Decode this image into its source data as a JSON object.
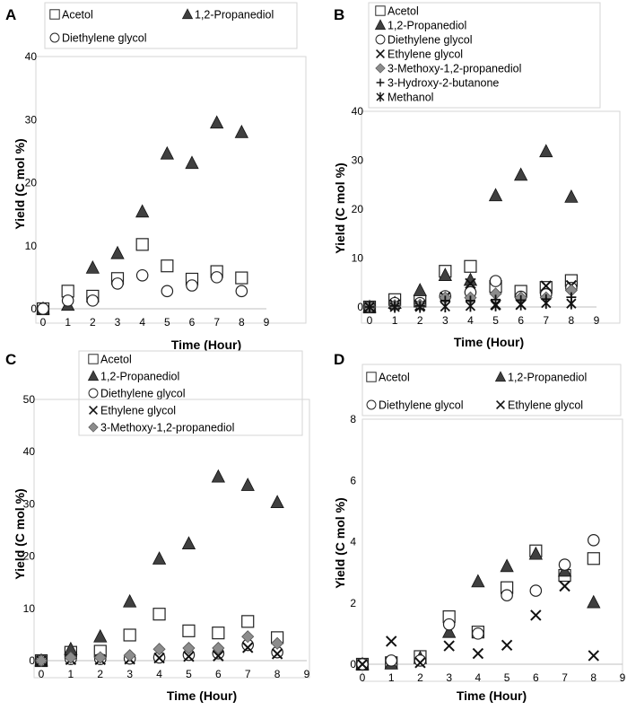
{
  "chart_data": [
    {
      "panel": "A",
      "type": "scatter",
      "xlabel": "Time (Hour)",
      "ylabel": "Yield (C mol %)",
      "xlim": [
        0,
        9
      ],
      "ylim": [
        0,
        40
      ],
      "xticks": [
        "0",
        "1",
        "2",
        "3",
        "4",
        "5",
        "6",
        "7",
        "8",
        "9"
      ],
      "yticks": [
        "0",
        "10",
        "20",
        "30",
        "40"
      ],
      "grid": false,
      "legend_position": "top",
      "legend": [
        "Acetol",
        "1,2-Propanediol",
        "Diethylene glycol"
      ],
      "series": [
        {
          "name": "Acetol",
          "marker": "square",
          "x": [
            0,
            1,
            2,
            3,
            4,
            5,
            6,
            7,
            8
          ],
          "values": [
            0,
            2.8,
            2.0,
            4.8,
            10.2,
            6.8,
            4.7,
            5.9,
            4.9
          ]
        },
        {
          "name": "1,2-Propanediol",
          "marker": "triangle",
          "x": [
            0,
            1,
            2,
            3,
            4,
            5,
            6,
            7,
            8
          ],
          "values": [
            0,
            0.6,
            6.5,
            8.8,
            15.4,
            24.6,
            23.1,
            29.5,
            28.0
          ]
        },
        {
          "name": "Diethylene glycol",
          "marker": "circle",
          "x": [
            0,
            1,
            2,
            3,
            4,
            5,
            6,
            7,
            8
          ],
          "values": [
            0,
            1.3,
            1.3,
            4.0,
            5.3,
            2.8,
            3.7,
            5.0,
            2.8
          ]
        }
      ]
    },
    {
      "panel": "B",
      "type": "scatter",
      "xlabel": "Time (Hour)",
      "ylabel": "Yield (C mol %)",
      "xlim": [
        0,
        9
      ],
      "ylim": [
        0,
        40
      ],
      "xticks": [
        "0",
        "1",
        "2",
        "3",
        "4",
        "5",
        "6",
        "7",
        "8",
        "9"
      ],
      "yticks": [
        "0",
        "10",
        "20",
        "30",
        "40"
      ],
      "grid": false,
      "legend_position": "top",
      "legend": [
        "Acetol",
        "1,2-Propanediol",
        "Diethylene glycol",
        "Ethylene glycol",
        "3-Methoxy-1,2-propanediol",
        "3-Hydroxy-2-butanone",
        "Methanol"
      ],
      "series": [
        {
          "name": "Acetol",
          "marker": "square",
          "x": [
            0,
            1,
            2,
            3,
            4,
            5,
            6,
            7,
            8
          ],
          "values": [
            0,
            1.5,
            1.2,
            7.3,
            8.3,
            4.2,
            3.2,
            4.0,
            5.4
          ]
        },
        {
          "name": "1,2-Propanediol",
          "marker": "triangle",
          "x": [
            0,
            1,
            2,
            3,
            4,
            5,
            6,
            7,
            8
          ],
          "values": [
            0,
            0.8,
            3.4,
            6.5,
            5.5,
            22.8,
            27.0,
            31.8,
            22.5
          ]
        },
        {
          "name": "Diethylene glycol",
          "marker": "circle",
          "x": [
            0,
            1,
            2,
            3,
            4,
            5,
            6,
            7,
            8
          ],
          "values": [
            0,
            0.8,
            0.8,
            2.2,
            3.0,
            5.3,
            2.1,
            2.6,
            3.9
          ]
        },
        {
          "name": "Ethylene glycol",
          "marker": "x",
          "x": [
            0,
            1,
            2,
            3,
            4,
            5,
            6,
            7,
            8
          ],
          "values": [
            0,
            0.5,
            0.3,
            2.0,
            4.8,
            0.5,
            0.5,
            4.3,
            4.4
          ]
        },
        {
          "name": "3-Methoxy-1,2-propanediol",
          "marker": "diamond",
          "x": [
            0,
            1,
            2,
            3,
            4,
            5,
            6,
            7,
            8
          ],
          "values": [
            0,
            0.3,
            0.4,
            1.9,
            1.9,
            2.7,
            1.9,
            1.9,
            3.4
          ]
        },
        {
          "name": "3-Hydroxy-2-butanone",
          "marker": "plus",
          "x": [
            0,
            1,
            2,
            3,
            4,
            5,
            6,
            7,
            8
          ],
          "values": [
            0,
            0.2,
            0.2,
            1.3,
            1.3,
            1.5,
            1.4,
            1.6,
            2.0
          ]
        },
        {
          "name": "Methanol",
          "marker": "star",
          "x": [
            0,
            1,
            2,
            3,
            4,
            5,
            6,
            7,
            8
          ],
          "values": [
            0,
            0,
            0,
            0.1,
            0.2,
            0.3,
            0.5,
            0.8,
            0.7
          ]
        }
      ]
    },
    {
      "panel": "C",
      "type": "scatter",
      "xlabel": "Time (Hour)",
      "ylabel": "Yield (C mol %)",
      "xlim": [
        0,
        9
      ],
      "ylim": [
        0,
        50
      ],
      "xticks": [
        "0",
        "1",
        "2",
        "3",
        "4",
        "5",
        "6",
        "7",
        "8",
        "9"
      ],
      "yticks": [
        "0",
        "10",
        "20",
        "30",
        "40",
        "50"
      ],
      "grid": false,
      "legend_position": "top",
      "legend": [
        "Acetol",
        "1,2-Propanediol",
        "Diethylene glycol",
        "Ethylene glycol",
        "3-Methoxy-1,2-propanediol"
      ],
      "series": [
        {
          "name": "Acetol",
          "marker": "square",
          "x": [
            0,
            1,
            2,
            3,
            4,
            5,
            6,
            7,
            8
          ],
          "values": [
            0,
            1.6,
            1.8,
            4.9,
            8.9,
            5.7,
            5.3,
            7.5,
            4.4
          ]
        },
        {
          "name": "1,2-Propanediol",
          "marker": "triangle",
          "x": [
            0,
            1,
            2,
            3,
            4,
            5,
            6,
            7,
            8
          ],
          "values": [
            0,
            2.2,
            4.6,
            11.3,
            19.5,
            22.4,
            35.2,
            33.6,
            30.3
          ]
        },
        {
          "name": "Diethylene glycol",
          "marker": "circle",
          "x": [
            0,
            1,
            2,
            3,
            4,
            5,
            6,
            7,
            8
          ],
          "values": [
            0,
            0.3,
            0.3,
            0.4,
            0.6,
            1.1,
            1.4,
            3.0,
            1.6
          ]
        },
        {
          "name": "Ethylene glycol",
          "marker": "x",
          "x": [
            0,
            1,
            2,
            3,
            4,
            5,
            6,
            7,
            8
          ],
          "values": [
            0,
            0.2,
            0.2,
            0.3,
            0.5,
            0.8,
            0.9,
            2.5,
            1.3
          ]
        },
        {
          "name": "3-Methoxy-1,2-propanediol",
          "marker": "diamond",
          "x": [
            0,
            1,
            2,
            3,
            4,
            5,
            6,
            7,
            8
          ],
          "values": [
            0,
            0.6,
            0.6,
            1.0,
            2.2,
            2.4,
            2.4,
            4.6,
            3.3
          ]
        }
      ]
    },
    {
      "panel": "D",
      "type": "scatter",
      "xlabel": "Time (Hour)",
      "ylabel": "Yield (C mol %)",
      "xlim": [
        0,
        9
      ],
      "ylim": [
        0,
        8
      ],
      "xticks": [
        "0",
        "1",
        "2",
        "3",
        "4",
        "5",
        "6",
        "7",
        "8",
        "9"
      ],
      "yticks": [
        "0",
        "2",
        "4",
        "6",
        "8"
      ],
      "grid": false,
      "legend_position": "top",
      "legend": [
        "Acetol",
        "1,2-Propanediol",
        "Diethylene glycol",
        "Ethylene glycol"
      ],
      "series": [
        {
          "name": "Acetol",
          "marker": "square",
          "x": [
            0,
            1,
            2,
            3,
            4,
            5,
            6,
            7,
            8
          ],
          "values": [
            0,
            0.05,
            0.25,
            1.55,
            1.05,
            2.5,
            3.7,
            2.9,
            3.45
          ]
        },
        {
          "name": "1,2-Propanediol",
          "marker": "triangle",
          "x": [
            0,
            1,
            2,
            3,
            4,
            5,
            6,
            7,
            8
          ],
          "values": [
            0,
            0.02,
            0.2,
            1.05,
            2.7,
            3.2,
            3.6,
            3.05,
            2.02
          ]
        },
        {
          "name": "Diethylene glycol",
          "marker": "circle",
          "x": [
            0,
            1,
            2,
            3,
            4,
            5,
            6,
            7,
            8
          ],
          "values": [
            0,
            0.12,
            0.12,
            1.3,
            1.0,
            2.25,
            2.4,
            3.25,
            4.05
          ]
        },
        {
          "name": "Ethylene glycol",
          "marker": "x",
          "x": [
            0,
            1,
            2,
            3,
            4,
            5,
            6,
            7,
            8
          ],
          "values": [
            0,
            0.75,
            0.05,
            0.6,
            0.35,
            0.62,
            1.6,
            2.55,
            0.28
          ]
        }
      ]
    }
  ]
}
